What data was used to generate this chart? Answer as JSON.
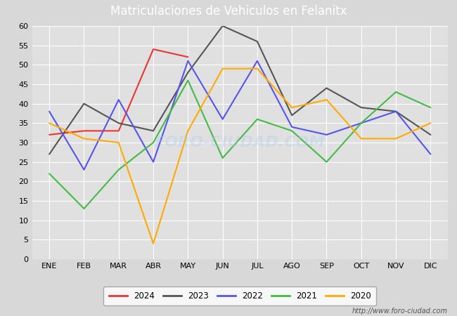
{
  "title": "Matriculaciones de Vehiculos en Felanitx",
  "months": [
    "ENE",
    "FEB",
    "MAR",
    "ABR",
    "MAY",
    "JUN",
    "JUL",
    "AGO",
    "SEP",
    "OCT",
    "NOV",
    "DIC"
  ],
  "series": {
    "2024": [
      32,
      33,
      33,
      54,
      52,
      null,
      null,
      null,
      null,
      null,
      null,
      null
    ],
    "2023": [
      27,
      40,
      35,
      33,
      48,
      60,
      56,
      37,
      44,
      39,
      38,
      32
    ],
    "2022": [
      38,
      23,
      41,
      25,
      51,
      36,
      51,
      34,
      32,
      35,
      38,
      27
    ],
    "2021": [
      22,
      13,
      23,
      30,
      46,
      26,
      36,
      33,
      25,
      35,
      43,
      39
    ],
    "2020": [
      35,
      31,
      30,
      4,
      33,
      49,
      49,
      39,
      41,
      31,
      31,
      35
    ]
  },
  "colors": {
    "2024": "#ee3333",
    "2023": "#555555",
    "2022": "#5555ee",
    "2021": "#44bb44",
    "2020": "#ffaa00"
  },
  "ylim": [
    0,
    60
  ],
  "yticks": [
    0,
    5,
    10,
    15,
    20,
    25,
    30,
    35,
    40,
    45,
    50,
    55,
    60
  ],
  "background_color": "#d8d8d8",
  "plot_bg_color": "#e0e0e0",
  "title_bg_color": "#4472c4",
  "title_text_color": "#ffffff",
  "watermark": "http://www.foro-ciudad.com",
  "center_watermark": "FORO-CIUDAD.COM",
  "title_fontsize": 12,
  "legend_years": [
    "2024",
    "2023",
    "2022",
    "2021",
    "2020"
  ]
}
